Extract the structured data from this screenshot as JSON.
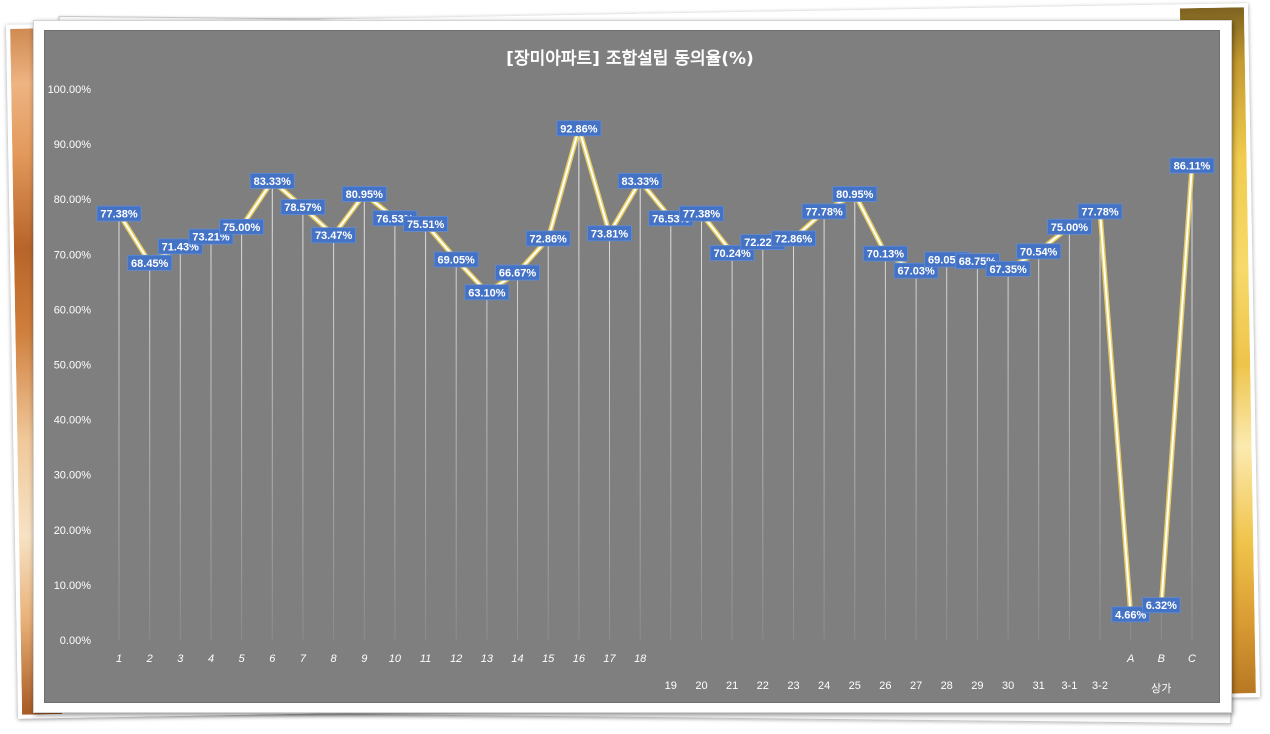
{
  "chart_data": {
    "type": "line",
    "title": "[장미아파트] 조합설립 동의율(%)",
    "xlabel": "",
    "ylabel": "",
    "categories": [
      "1",
      "2",
      "3",
      "4",
      "5",
      "6",
      "7",
      "8",
      "9",
      "10",
      "11",
      "12",
      "13",
      "14",
      "15",
      "16",
      "17",
      "18",
      "19",
      "20",
      "21",
      "22",
      "23",
      "24",
      "25",
      "26",
      "27",
      "28",
      "29",
      "30",
      "31",
      "3-1",
      "3-2",
      "A",
      "B",
      "C"
    ],
    "category_groups": [
      {
        "label": "상가",
        "span": [
          33,
          35
        ]
      }
    ],
    "series": [
      {
        "values": [
          77.38,
          68.45,
          71.43,
          73.21,
          75.0,
          83.33,
          78.57,
          73.47,
          80.95,
          76.53,
          75.51,
          69.05,
          63.1,
          66.67,
          72.86,
          92.86,
          73.81,
          83.33,
          76.53,
          77.38,
          70.24,
          72.22,
          72.86,
          77.78,
          80.95,
          70.13,
          67.03,
          69.05,
          68.75,
          67.35,
          70.54,
          75.0,
          77.78,
          4.66,
          6.32,
          86.11
        ],
        "data_labels": [
          "77.38%",
          "68.45%",
          "71.43%",
          "73.21%",
          "75.00%",
          "83.33%",
          "78.57%",
          "73.47%",
          "80.95%",
          "76.53%",
          "75.51%",
          "69.05%",
          "63.10%",
          "66.67%",
          "72.86%",
          "92.86%",
          "73.81%",
          "83.33%",
          "76.53%",
          "77.38%",
          "70.24%",
          "72.22%",
          "72.86%",
          "77.78%",
          "80.95%",
          "70.13%",
          "67.03%",
          "69.05%",
          "68.75%",
          "67.35%",
          "70.54%",
          "75.00%",
          "77.78%",
          "4.66%",
          "6.32%",
          "86.11%"
        ]
      }
    ],
    "y_ticks": [
      0,
      10,
      20,
      30,
      40,
      50,
      60,
      70,
      80,
      90,
      100
    ],
    "y_tick_labels": [
      "0.00%",
      "10.00%",
      "20.00%",
      "30.00%",
      "40.00%",
      "50.00%",
      "60.00%",
      "70.00%",
      "80.00%",
      "90.00%",
      "100.00%"
    ],
    "ylim": [
      0,
      100
    ],
    "grid": false,
    "drop_lines": true,
    "legend": "none"
  },
  "colors": {
    "panel_background": "#7f7f7f",
    "line_outer": "#e6cb5e",
    "line_inner": "#ffffff",
    "label_fill": "#4472c4",
    "label_border": "#5f8bd6",
    "label_text": "#ffffff",
    "axis_text": "#ffffff",
    "drop_line": "#ffffff"
  }
}
